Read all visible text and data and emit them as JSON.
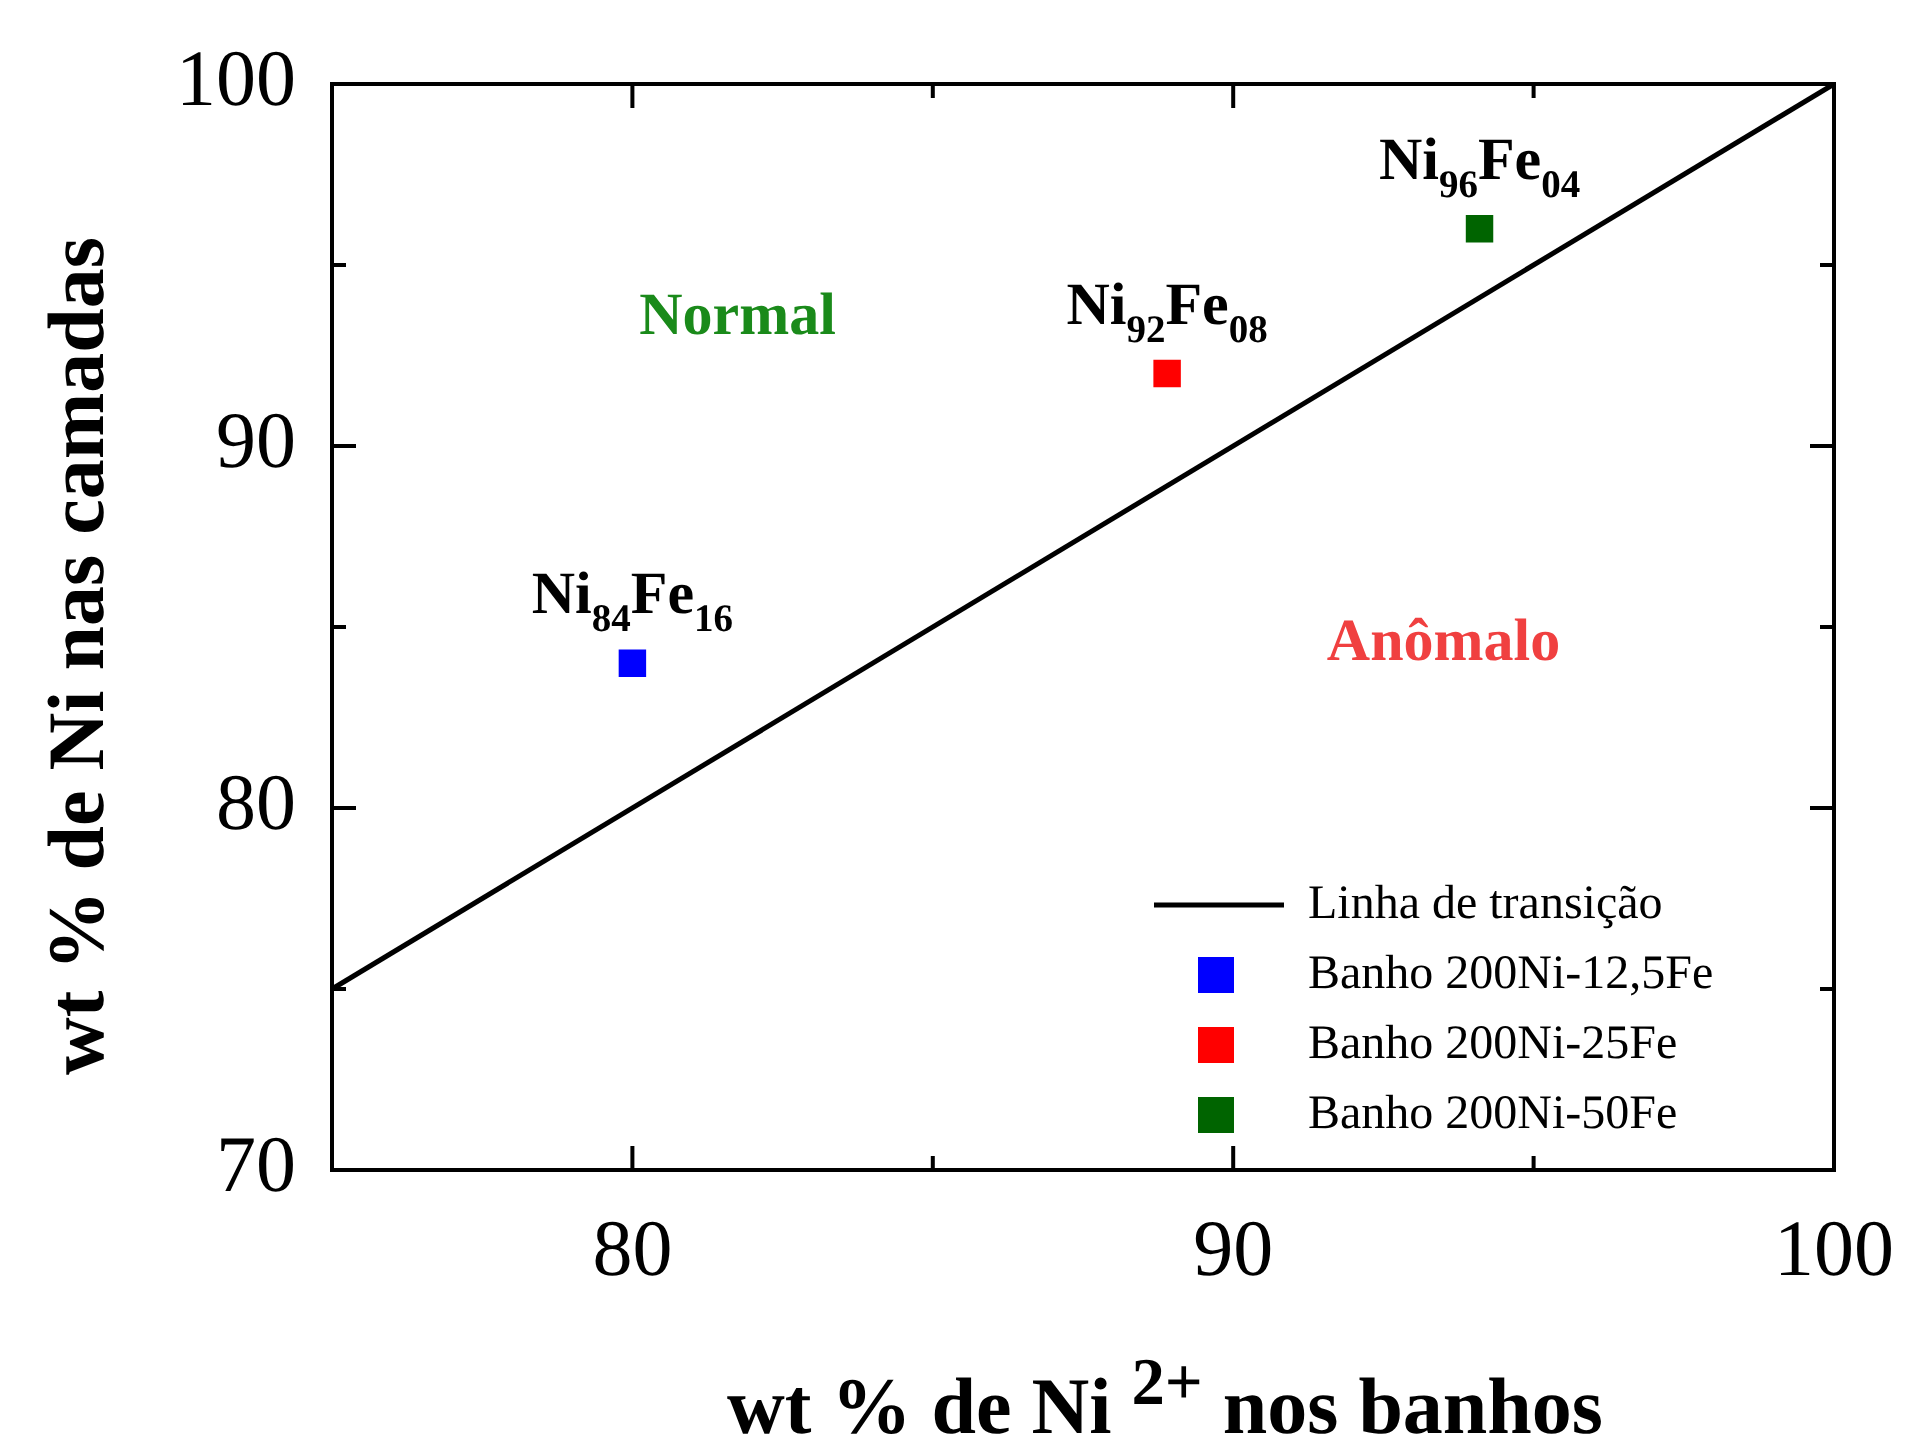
{
  "chart_data": {
    "type": "scatter",
    "xlabel": "wt % de Ni $^{2+}$ nos banhos",
    "ylabel": "wt % de Ni nas camadas",
    "xlim": [
      75,
      100
    ],
    "ylim": [
      70,
      100
    ],
    "xticks": [
      {
        "value": 75,
        "label": null
      },
      80,
      {
        "value": 85,
        "label": null
      },
      90,
      {
        "value": 95,
        "label": null
      },
      100
    ],
    "yticks": [
      70,
      {
        "value": 75,
        "label": null
      },
      80,
      {
        "value": 85,
        "label": null
      },
      90,
      {
        "value": 95,
        "label": null
      },
      100
    ],
    "grid": false,
    "legend": "bottom right",
    "marker": "square",
    "series": [
      {
        "name": "Linha de transição",
        "type": "line",
        "marker": "none",
        "color": "#000000",
        "x": [
          75,
          100
        ],
        "values": [
          75,
          100
        ]
      },
      {
        "name": "Banho 200Ni-12,5Fe",
        "color": "#0000ff",
        "x": [
          80
        ],
        "values": [
          84
        ]
      },
      {
        "name": "Banho 200Ni-25Fe",
        "color": "#ff0000",
        "x": [
          88.9
        ],
        "values": [
          92
        ]
      },
      {
        "name": "Banho 200Ni-50Fe",
        "color": "#006400",
        "x": [
          94.1
        ],
        "values": [
          96
        ]
      }
    ],
    "annotations": [
      {
        "text": "Ni$_{84}$Fe$_{16}$",
        "x": 80,
        "y": 84
      },
      {
        "text": "Ni$_{92}$Fe$_{08}$",
        "x": 88.9,
        "y": 92
      },
      {
        "text": "Ni$_{96}$Fe$_{04}$",
        "x": 94.1,
        "y": 96
      },
      "Normal",
      "Anômalo"
    ]
  }
}
